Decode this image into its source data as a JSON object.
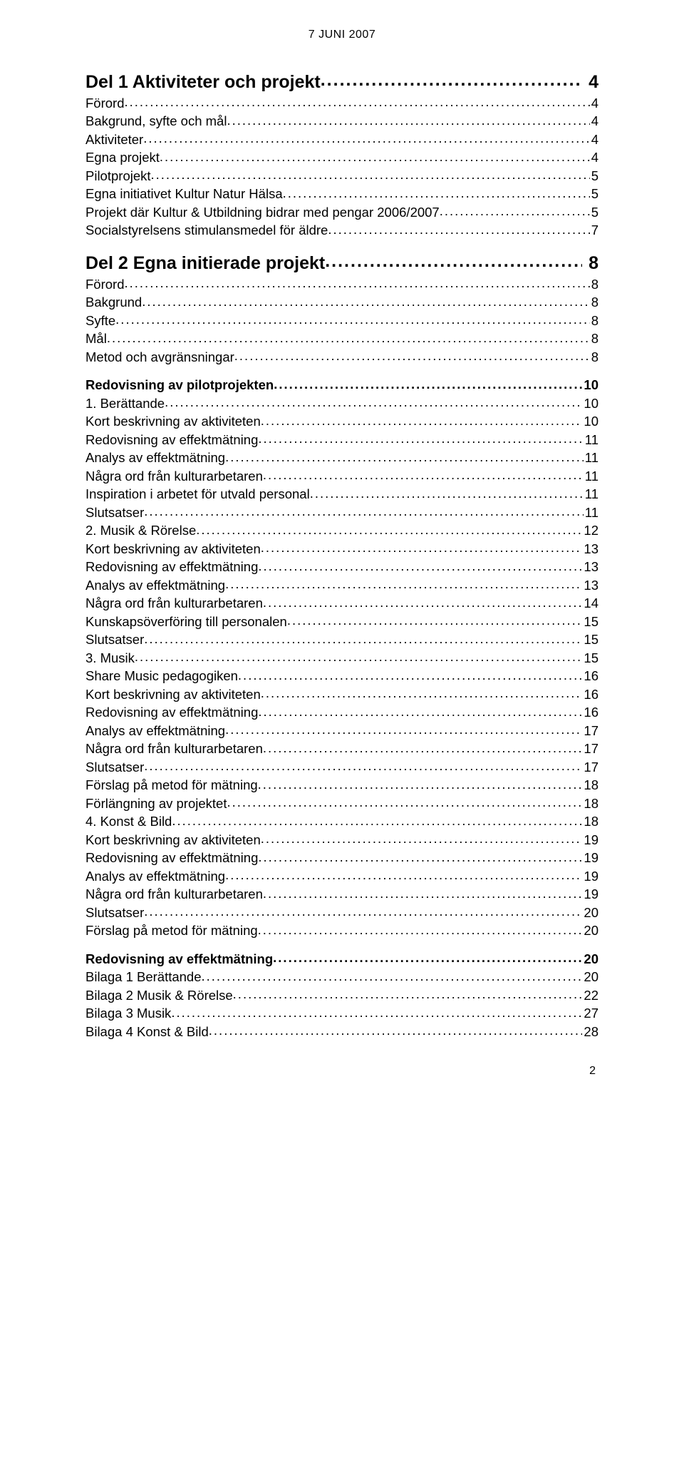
{
  "header": {
    "date": "7 JUNI 2007"
  },
  "footer": {
    "page_number": "2"
  },
  "toc": [
    {
      "level": 0,
      "label": "Del 1 Aktiviteter och projekt",
      "spaced": true,
      "page": "4"
    },
    {
      "level": 1,
      "label": "Förord",
      "page": "4"
    },
    {
      "level": 1,
      "label": "Bakgrund, syfte och mål",
      "page": "4"
    },
    {
      "level": 1,
      "label": "Aktiviteter",
      "page": "4"
    },
    {
      "level": 1,
      "label": "Egna projekt",
      "page": "4"
    },
    {
      "level": 1,
      "label": "Pilotprojekt",
      "page": "5"
    },
    {
      "level": 1,
      "label": "Egna initiativet Kultur Natur Hälsa",
      "page": "5"
    },
    {
      "level": 1,
      "label": "Projekt där Kultur & Utbildning bidrar med pengar 2006/2007",
      "page": "5"
    },
    {
      "level": 1,
      "label": "Socialstyrelsens stimulansmedel för äldre",
      "page": "7"
    },
    {
      "level": 0,
      "label": "Del 2 Egna initierade projekt",
      "spaced": true,
      "page": "8"
    },
    {
      "level": 1,
      "label": "Förord",
      "page": "8"
    },
    {
      "level": 1,
      "label": "Bakgrund",
      "page": "8"
    },
    {
      "level": 1,
      "label": "Syfte",
      "page": "8"
    },
    {
      "level": 1,
      "label": "Mål",
      "page": "8"
    },
    {
      "level": 1,
      "label": "Metod och avgränsningar",
      "page": "8"
    },
    {
      "level": 2,
      "label": "Redovisning av pilotprojekten",
      "page": "10"
    },
    {
      "level": 1,
      "label": "1. Berättande",
      "page": "10"
    },
    {
      "level": 1,
      "label": "Kort beskrivning av aktiviteten",
      "page": "10"
    },
    {
      "level": 1,
      "label": "Redovisning av effektmätning",
      "page": "11"
    },
    {
      "level": 1,
      "label": "Analys av effektmätning",
      "page": "11"
    },
    {
      "level": 1,
      "label": "Några ord från kulturarbetaren",
      "page": "11"
    },
    {
      "level": 1,
      "label": "Inspiration i arbetet för utvald personal",
      "page": "11"
    },
    {
      "level": 1,
      "label": "Slutsatser",
      "page": "11"
    },
    {
      "level": 1,
      "label": "2. Musik & Rörelse",
      "page": "12"
    },
    {
      "level": 1,
      "label": "Kort beskrivning av aktiviteten",
      "page": "13"
    },
    {
      "level": 1,
      "label": "Redovisning av effektmätning",
      "page": "13"
    },
    {
      "level": 1,
      "label": "Analys av effektmätning",
      "page": "13"
    },
    {
      "level": 1,
      "label": "Några ord från kulturarbetaren",
      "page": "14"
    },
    {
      "level": 1,
      "label": "Kunskapsöverföring till personalen",
      "page": "15"
    },
    {
      "level": 1,
      "label": "Slutsatser",
      "page": "15"
    },
    {
      "level": 1,
      "label": "3. Musik",
      "page": "15"
    },
    {
      "level": 1,
      "label": "Share Music pedagogiken",
      "page": "16"
    },
    {
      "level": 1,
      "label": "Kort beskrivning av aktiviteten",
      "page": "16"
    },
    {
      "level": 1,
      "label": "Redovisning av effektmätning",
      "page": "16"
    },
    {
      "level": 1,
      "label": "Analys av effektmätning",
      "page": "17"
    },
    {
      "level": 1,
      "label": "Några ord från kulturarbetaren",
      "page": "17"
    },
    {
      "level": 1,
      "label": "Slutsatser",
      "page": "17"
    },
    {
      "level": 1,
      "label": "Förslag på metod för mätning",
      "page": "18"
    },
    {
      "level": 1,
      "label": "Förlängning av projektet",
      "page": "18"
    },
    {
      "level": 1,
      "label": "4. Konst & Bild",
      "page": "18"
    },
    {
      "level": 1,
      "label": "Kort beskrivning av aktiviteten",
      "page": "19"
    },
    {
      "level": 1,
      "label": "Redovisning av effektmätning",
      "page": "19"
    },
    {
      "level": 1,
      "label": "Analys av effektmätning",
      "page": "19"
    },
    {
      "level": 1,
      "label": "Några ord från kulturarbetaren",
      "page": "19"
    },
    {
      "level": 1,
      "label": "Slutsatser",
      "page": "20"
    },
    {
      "level": 1,
      "label": "Förslag på metod för mätning",
      "page": "20"
    },
    {
      "level": 2,
      "label": "Redovisning av effektmätning",
      "page": "20"
    },
    {
      "level": 1,
      "label": "Bilaga 1 Berättande",
      "page": "20"
    },
    {
      "level": 1,
      "label": "Bilaga 2 Musik & Rörelse",
      "page": "22"
    },
    {
      "level": 1,
      "label": "Bilaga 3 Musik",
      "page": "27"
    },
    {
      "level": 1,
      "label": "Bilaga 4 Konst & Bild",
      "page": "28"
    }
  ]
}
